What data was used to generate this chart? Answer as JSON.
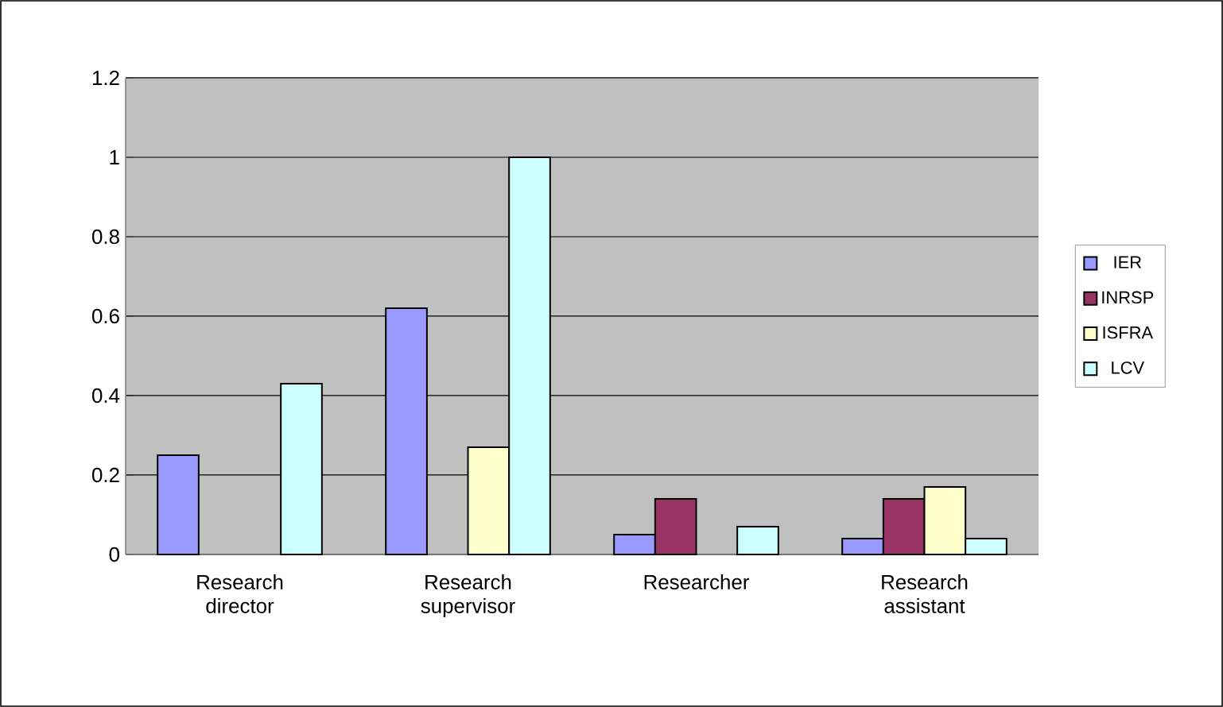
{
  "chart_data": {
    "type": "bar",
    "categories": [
      "Research director",
      "Research supervisor",
      "Researcher",
      "Research assistant"
    ],
    "series": [
      {
        "name": "IER",
        "color": "#9999ff",
        "values": [
          0.25,
          0.62,
          0.05,
          0.04
        ]
      },
      {
        "name": "INRSP",
        "color": "#993366",
        "values": [
          null,
          null,
          0.14,
          0.14
        ]
      },
      {
        "name": "ISFRA",
        "color": "#ffffcc",
        "values": [
          null,
          0.27,
          null,
          0.17
        ]
      },
      {
        "name": "LCV",
        "color": "#ccffff",
        "values": [
          0.43,
          1.0,
          0.07,
          0.04
        ]
      }
    ],
    "ylim": [
      0,
      1.2
    ],
    "yticks": [
      0,
      0.2,
      0.4,
      0.6,
      0.8,
      1,
      1.2
    ],
    "grid": "y",
    "legend": "right"
  }
}
